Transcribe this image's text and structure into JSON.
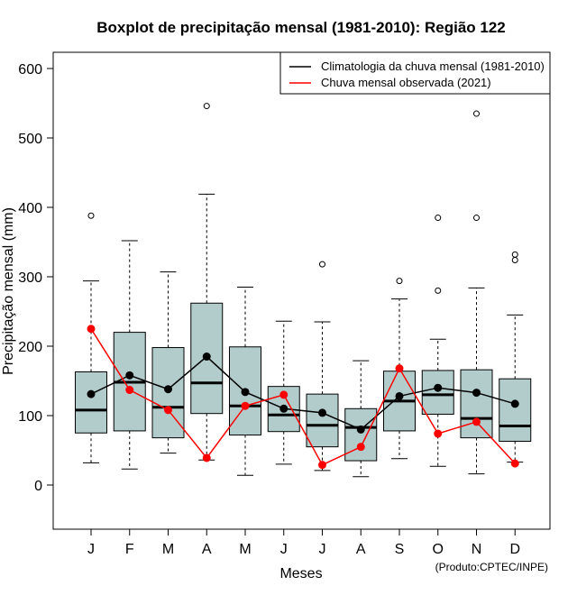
{
  "chart_data": {
    "type": "boxplot",
    "title": "Boxplot de precipitação mensal (1981-2010): Região 122",
    "xlabel": "Meses",
    "ylabel": "Precipitação mensal (mm)",
    "ylim": [
      -60,
      620
    ],
    "yticks": [
      0,
      100,
      200,
      300,
      400,
      500,
      600
    ],
    "categories": [
      "J",
      "F",
      "M",
      "A",
      "M",
      "J",
      "J",
      "A",
      "S",
      "O",
      "N",
      "D"
    ],
    "boxes": [
      {
        "lower_whisker": 32,
        "q1": 75,
        "median": 108,
        "q3": 163,
        "upper_whisker": 294,
        "outliers": [
          388
        ]
      },
      {
        "lower_whisker": 23,
        "q1": 78,
        "median": 148,
        "q3": 220,
        "upper_whisker": 352,
        "outliers": []
      },
      {
        "lower_whisker": 46,
        "q1": 68,
        "median": 112,
        "q3": 198,
        "upper_whisker": 307,
        "outliers": []
      },
      {
        "lower_whisker": 36,
        "q1": 103,
        "median": 147,
        "q3": 262,
        "upper_whisker": 419,
        "outliers": [
          546
        ]
      },
      {
        "lower_whisker": 14,
        "q1": 72,
        "median": 114,
        "q3": 199,
        "upper_whisker": 285,
        "outliers": []
      },
      {
        "lower_whisker": 30,
        "q1": 77,
        "median": 101,
        "q3": 142,
        "upper_whisker": 236,
        "outliers": []
      },
      {
        "lower_whisker": 21,
        "q1": 55,
        "median": 86,
        "q3": 131,
        "upper_whisker": 235,
        "outliers": [
          318
        ]
      },
      {
        "lower_whisker": 12,
        "q1": 35,
        "median": 83,
        "q3": 110,
        "upper_whisker": 179,
        "outliers": []
      },
      {
        "lower_whisker": 38,
        "q1": 78,
        "median": 121,
        "q3": 164,
        "upper_whisker": 268,
        "outliers": [
          294
        ]
      },
      {
        "lower_whisker": 27,
        "q1": 102,
        "median": 130,
        "q3": 165,
        "upper_whisker": 210,
        "outliers": [
          280,
          385
        ]
      },
      {
        "lower_whisker": 16,
        "q1": 68,
        "median": 96,
        "q3": 166,
        "upper_whisker": 284,
        "outliers": [
          385,
          535
        ]
      },
      {
        "lower_whisker": 33,
        "q1": 63,
        "median": 85,
        "q3": 153,
        "upper_whisker": 245,
        "outliers": [
          324,
          332
        ]
      }
    ],
    "series": [
      {
        "name": "Climatologia da chuva mensal (1981-2010)",
        "color": "#000000",
        "values": [
          131,
          158,
          138,
          185,
          134,
          110,
          104,
          80,
          128,
          140,
          133,
          117
        ]
      },
      {
        "name": "Chuva mensal observada (2021)",
        "color": "#ff0000",
        "values": [
          225,
          137,
          108,
          39,
          114,
          130,
          29,
          55,
          168,
          74,
          91,
          31
        ]
      }
    ],
    "box_fill": "#b2cccc",
    "legend_position": "top-right"
  },
  "credit": "(Produto:CPTEC/INPE)"
}
